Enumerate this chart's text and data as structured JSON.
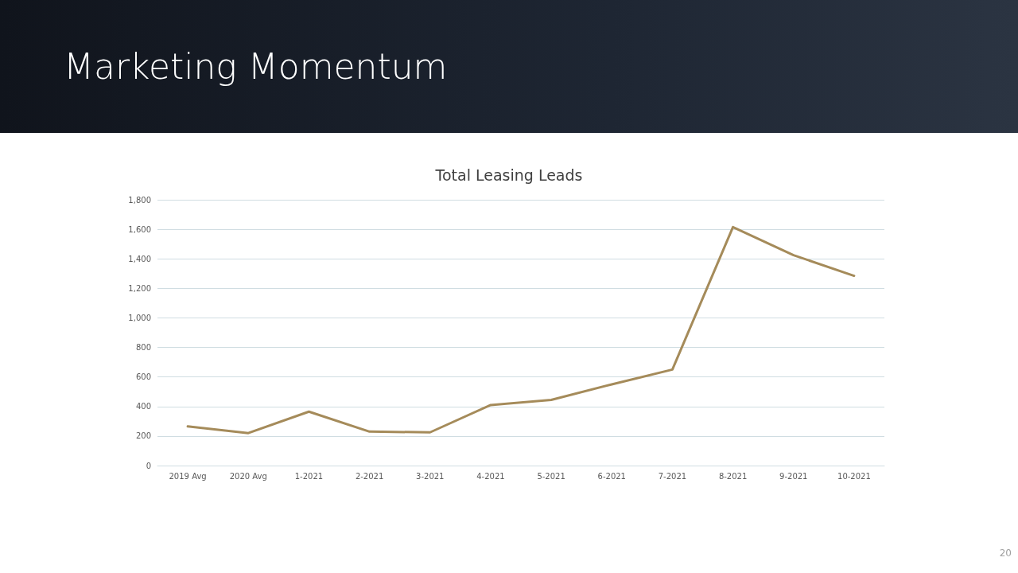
{
  "chart_data": {
    "type": "line",
    "title": "Marketing Momentum",
    "subtitle": "Total Leasing Leads",
    "categories": [
      "2019 Avg",
      "2020 Avg",
      "1-2021",
      "2-2021",
      "3-2021",
      "4-2021",
      "5-2021",
      "6-2021",
      "7-2021",
      "8-2021",
      "9-2021",
      "10-2021"
    ],
    "series": [
      {
        "color": "#a58b5a",
        "values": [
          265,
          220,
          365,
          230,
          225,
          410,
          445,
          550,
          650,
          1615,
          1425,
          1285
        ]
      }
    ],
    "ylim": [
      0,
      1800
    ],
    "yticks": [
      0,
      200,
      400,
      600,
      800,
      {
        "value": 1000,
        "label": "1,000"
      },
      {
        "value": 1200,
        "label": "1,200"
      },
      {
        "value": 1400,
        "label": "1,400"
      },
      {
        "value": 1600,
        "label": "1,600"
      },
      {
        "value": 1800,
        "label": "1,800"
      }
    ],
    "grid": "y",
    "marker": "none",
    "line_style": "solid",
    "annotations": [
      "20"
    ]
  }
}
